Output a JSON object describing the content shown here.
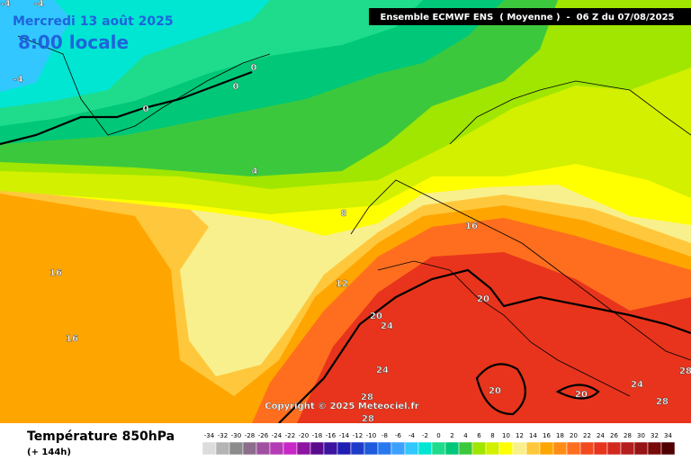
{
  "header": {
    "date": "Mercredi 13 août 2025",
    "time": "8:00 locale",
    "model": "Ensemble ECMWF ENS  ( Moyenne )  -  06 Z du 07/08/2025"
  },
  "copyright": "Copyright © 2025 Meteociel.fr",
  "footer": {
    "title": "Température 850hPa",
    "subtitle": "(+ 144h)"
  },
  "contour_labels": [
    -4,
    -4,
    -4,
    0,
    0,
    0,
    4,
    8,
    12,
    16,
    16,
    16,
    20,
    20,
    24,
    24,
    24,
    20,
    20,
    28,
    28,
    28,
    28
  ],
  "scale": {
    "labels": [
      -34,
      -32,
      -30,
      -28,
      -26,
      -24,
      -22,
      -20,
      -18,
      -16,
      -14,
      -12,
      -10,
      -8,
      -6,
      -4,
      -2,
      0,
      2,
      4,
      6,
      8,
      10,
      12,
      14,
      16,
      18,
      20,
      22,
      24,
      26,
      28,
      30,
      32,
      34
    ],
    "colors": [
      "#dcdcdc",
      "#b4b4b4",
      "#8c8c8c",
      "#8c6e8c",
      "#a050a0",
      "#b43cb4",
      "#c828c8",
      "#8c14a0",
      "#5a0a8c",
      "#3c14a0",
      "#1e1eb4",
      "#1e3cc8",
      "#1e5adc",
      "#2878f0",
      "#3ca0ff",
      "#32c8ff",
      "#00e6d2",
      "#1edc8c",
      "#00c878",
      "#3cc83c",
      "#a0e600",
      "#d2f000",
      "#ffff00",
      "#f8f08c",
      "#ffc83c",
      "#ffa500",
      "#ff8c14",
      "#ff6e1e",
      "#f04a1e",
      "#e8341c",
      "#d2281e",
      "#b41e1e",
      "#961414",
      "#780a0a",
      "#500000"
    ]
  }
}
